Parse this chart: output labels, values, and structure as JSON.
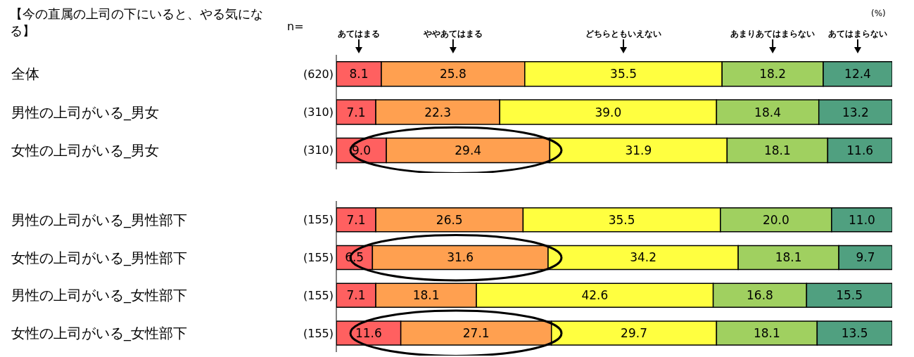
{
  "chart_data": [
    {
      "type": "bar",
      "orientation": "horizontal",
      "stacked": true,
      "title": "【今の直属の上司の下にいると、やる気になる】",
      "categories": [
        "全体",
        "男性の上司がいる_男女",
        "女性の上司がいる_男女"
      ],
      "series": [
        {
          "name": "あてはまる",
          "color": "#ff6060",
          "values": [
            8.1,
            7.1,
            9.0
          ],
          "value_labels": [
            "8.1",
            "7.1",
            "9.0"
          ]
        },
        {
          "name": "ややあてはまる",
          "color": "#ffa050",
          "values": [
            25.8,
            22.3,
            29.4
          ],
          "value_labels": [
            "25.8",
            "22.3",
            "29.4"
          ]
        },
        {
          "name": "どちらともいえない",
          "color": "#ffff40",
          "values": [
            35.5,
            39.0,
            31.9
          ],
          "value_labels": [
            "35.5",
            "39.0",
            "31.9"
          ]
        },
        {
          "name": "あまりあてはまらない",
          "color": "#a0d060",
          "values": [
            18.2,
            18.4,
            18.1
          ],
          "value_labels": [
            "18.2",
            "18.4",
            "18.1"
          ]
        },
        {
          "name": "あてはまらない",
          "color": "#50a080",
          "values": [
            12.4,
            13.2,
            11.6
          ],
          "value_labels": [
            "12.4",
            "13.2",
            "11.6"
          ]
        }
      ],
      "xlim": [
        0,
        100
      ],
      "tick_labels": "y",
      "legend": "top",
      "annotations": [
        "(620)",
        "(310)",
        "(310)",
        "n=",
        "(%)"
      ]
    },
    {
      "type": "bar",
      "orientation": "horizontal",
      "stacked": true,
      "categories": [
        "男性の上司がいる_男性部下",
        "女性の上司がいる_男性部下",
        "男性の上司がいる_女性部下",
        "女性の上司がいる_女性部下"
      ],
      "series": [
        {
          "color": "#ff6060",
          "values": [
            7.1,
            6.5,
            7.1,
            11.6
          ],
          "value_labels": [
            "7.1",
            "6.5",
            "7.1",
            "11.6"
          ]
        },
        {
          "color": "#ffa050",
          "values": [
            26.5,
            31.6,
            18.1,
            27.1
          ],
          "value_labels": [
            "26.5",
            "31.6",
            "18.1",
            "27.1"
          ]
        },
        {
          "color": "#ffff40",
          "values": [
            35.5,
            34.2,
            42.6,
            29.7
          ],
          "value_labels": [
            "35.5",
            "34.2",
            "42.6",
            "29.7"
          ]
        },
        {
          "color": "#a0d060",
          "values": [
            20.0,
            18.1,
            16.8,
            18.1
          ],
          "value_labels": [
            "20.0",
            "18.1",
            "16.8",
            "18.1"
          ]
        },
        {
          "color": "#50a080",
          "values": [
            11.0,
            9.7,
            15.5,
            13.5
          ],
          "value_labels": [
            "11.0",
            "9.7",
            "15.5",
            "13.5"
          ]
        }
      ],
      "xlim": [
        0,
        100
      ],
      "tick_labels": "y",
      "annotations": [
        "(155)",
        "(155)",
        "(155)",
        "(155)"
      ]
    }
  ]
}
